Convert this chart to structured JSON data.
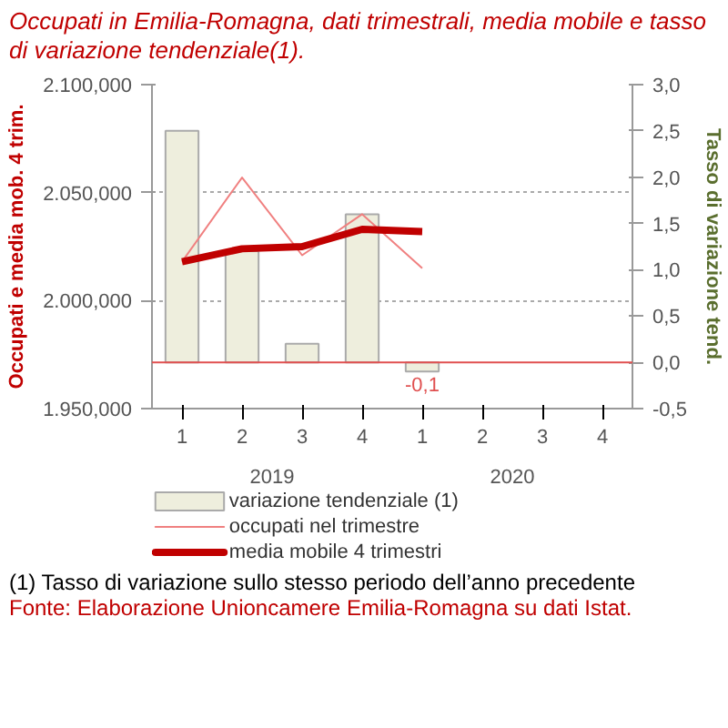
{
  "chart_data": {
    "type": "line",
    "title": "Occupati in Emilia-Romagna, dati trimestrali, media mobile e tasso di variazione tendenziale(1).",
    "ylabel": "Occupati e media mob. 4 trim.",
    "y2label": "Tasso di variazione tend.",
    "categories": [
      "1",
      "2",
      "3",
      "4",
      "1",
      "2",
      "3",
      "4"
    ],
    "series": [
      {
        "name": "variazione tendenziale (1)",
        "type": "bar",
        "axis": "y2",
        "color": "#eeeedd",
        "values": [
          2.5,
          1.2,
          0.2,
          1.6,
          -0.1,
          null,
          null,
          null
        ],
        "value_labels": [
          null,
          null,
          null,
          null,
          "-0,1",
          null,
          null,
          null
        ]
      },
      {
        "name": "occupati nel trimestre",
        "axis": "y",
        "color": "#f08080",
        "values": [
          2018,
          2057,
          2021,
          2040,
          2015,
          null,
          null,
          null
        ]
      },
      {
        "name": "media mobile 4 trimestri",
        "axis": "y",
        "color": "#c00000",
        "values": [
          2018,
          2024,
          2025,
          2033,
          2032,
          null,
          null,
          null
        ]
      }
    ],
    "ylim": [
      1950,
      2100
    ],
    "yticks": [
      {
        "value": 1950,
        "label": "1.950,000"
      },
      {
        "value": 2000,
        "label": "2.000,000"
      },
      {
        "value": 2050,
        "label": "2.050,000"
      },
      {
        "value": 2100,
        "label": "2.100,000"
      }
    ],
    "y2lim": [
      -0.5,
      3.0
    ],
    "y2ticks": [
      {
        "value": -0.5,
        "label": "-0,5"
      },
      {
        "value": 0,
        "label": "0,0"
      },
      {
        "value": 0.5,
        "label": "0,5"
      },
      {
        "value": 1.0,
        "label": "1,0"
      },
      {
        "value": 1.5,
        "label": "1,5"
      },
      {
        "value": 2.0,
        "label": "2,0"
      },
      {
        "value": 2.5,
        "label": "2,5"
      },
      {
        "value": 3.0,
        "label": "3,0"
      }
    ],
    "ref_lines": [
      {
        "axis": "y2",
        "value": 0,
        "color": "#e05050"
      }
    ],
    "grid": "y",
    "legend": "bottom",
    "marker": "none",
    "line_style": "solid",
    "annotations": [
      "2019",
      "2020",
      "(1) Tasso di variazione sullo stesso periodo dell’anno precedente",
      "Fonte: Elaborazione Unioncamere Emilia-Romagna su dati Istat."
    ]
  }
}
